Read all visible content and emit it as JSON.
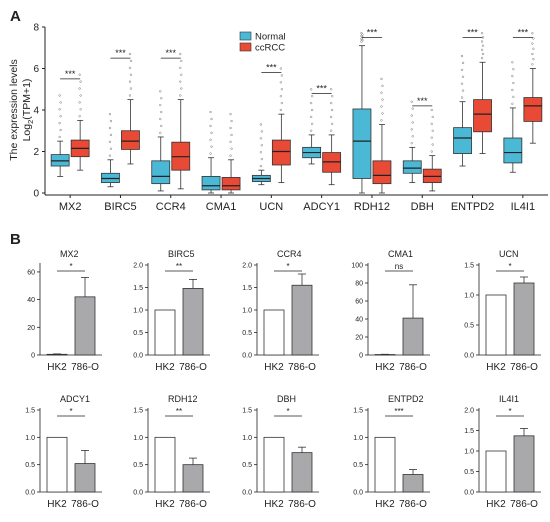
{
  "panel_a_label": "A",
  "panel_b_label": "B",
  "chart_data": [
    {
      "type": "boxplot",
      "ylabel_line1": "The expression levels",
      "ylabel_line2": "Log",
      "ylabel_sub": "2",
      "ylabel_tail": "(TPM+1)",
      "ylim": [
        0,
        8
      ],
      "yticks": [
        "0",
        "2",
        "4",
        "6",
        "8"
      ],
      "legend": [
        {
          "name": "Normal",
          "color": "#4bb9d6"
        },
        {
          "name": "ccRCC",
          "color": "#e84a35"
        }
      ],
      "categories": [
        "MX2",
        "BIRC5",
        "CCR4",
        "CMA1",
        "UCN",
        "ADCY1",
        "RDH12",
        "DBH",
        "ENTPD2",
        "IL4I1"
      ],
      "significance": [
        "***",
        "***",
        "***",
        "",
        "***",
        "***",
        "***",
        "***",
        "***",
        "***"
      ],
      "series": [
        {
          "name": "Normal",
          "boxes": [
            [
              0.8,
              1.3,
              1.55,
              1.85,
              2.5
            ],
            [
              0.3,
              0.5,
              0.7,
              0.95,
              1.6
            ],
            [
              0.1,
              0.45,
              0.8,
              1.55,
              2.7
            ],
            [
              0.0,
              0.15,
              0.35,
              0.8,
              1.7
            ],
            [
              0.4,
              0.55,
              0.7,
              0.85,
              1.1
            ],
            [
              1.4,
              1.7,
              1.95,
              2.2,
              2.8
            ],
            [
              0.0,
              0.7,
              2.5,
              4.05,
              7.1
            ],
            [
              0.5,
              0.95,
              1.2,
              1.55,
              2.2
            ],
            [
              1.3,
              1.9,
              2.65,
              3.15,
              4.4
            ],
            [
              1.0,
              1.45,
              1.95,
              2.65,
              4.1
            ]
          ]
        },
        {
          "name": "ccRCC",
          "boxes": [
            [
              1.1,
              1.75,
              2.15,
              2.55,
              3.5
            ],
            [
              1.4,
              2.1,
              2.5,
              3.0,
              4.5
            ],
            [
              0.2,
              1.1,
              1.75,
              2.45,
              4.5
            ],
            [
              0.0,
              0.15,
              0.35,
              0.75,
              1.6
            ],
            [
              0.5,
              1.35,
              2.0,
              2.55,
              3.8
            ],
            [
              0.4,
              1.0,
              1.5,
              1.95,
              2.8
            ],
            [
              0.0,
              0.45,
              0.85,
              1.55,
              3.3
            ],
            [
              0.1,
              0.5,
              0.8,
              1.15,
              1.8
            ],
            [
              1.9,
              2.95,
              3.8,
              4.5,
              6.3
            ],
            [
              2.4,
              3.45,
              4.2,
              4.6,
              6.0
            ]
          ]
        }
      ]
    },
    {
      "type": "bar",
      "title": "MX2",
      "categories": [
        "HK2",
        "786-O"
      ],
      "values": [
        0.5,
        42
      ],
      "errors": [
        0.3,
        14
      ],
      "yticks": [
        "0",
        "20",
        "40",
        "60"
      ],
      "ylim": [
        0,
        65
      ],
      "sig": "*"
    },
    {
      "type": "bar",
      "title": "BIRC5",
      "categories": [
        "HK2",
        "786-O"
      ],
      "values": [
        1.0,
        1.48
      ],
      "errors": [
        0,
        0.2
      ],
      "yticks": [
        "0.0",
        "0.5",
        "1.0",
        "1.5",
        "2.0"
      ],
      "ylim": [
        0,
        2.0
      ],
      "sig": "**"
    },
    {
      "type": "bar",
      "title": "CCR4",
      "categories": [
        "HK2",
        "786-O"
      ],
      "values": [
        1.0,
        1.55
      ],
      "errors": [
        0,
        0.25
      ],
      "yticks": [
        "0.0",
        "0.5",
        "1.0",
        "1.5",
        "2.0"
      ],
      "ylim": [
        0,
        2.0
      ],
      "sig": "*"
    },
    {
      "type": "bar",
      "title": "CMA1",
      "categories": [
        "HK2",
        "786-O"
      ],
      "values": [
        0.5,
        41
      ],
      "errors": [
        0.3,
        37
      ],
      "yticks": [
        "0",
        "20",
        "40",
        "60",
        "80",
        "100"
      ],
      "ylim": [
        0,
        100
      ],
      "sig": "ns"
    },
    {
      "type": "bar",
      "title": "UCN",
      "categories": [
        "HK2",
        "786-O"
      ],
      "values": [
        1.0,
        1.2
      ],
      "errors": [
        0,
        0.1
      ],
      "yticks": [
        "0.0",
        "0.5",
        "1.0",
        "1.5"
      ],
      "ylim": [
        0,
        1.5
      ],
      "sig": "*"
    },
    {
      "type": "bar",
      "title": "ADCY1",
      "categories": [
        "HK2",
        "786-O"
      ],
      "values": [
        1.0,
        0.52
      ],
      "errors": [
        0,
        0.24
      ],
      "yticks": [
        "0.0",
        "0.5",
        "1.0",
        "1.5"
      ],
      "ylim": [
        0,
        1.5
      ],
      "sig": "*"
    },
    {
      "type": "bar",
      "title": "RDH12",
      "categories": [
        "HK2",
        "786-O"
      ],
      "values": [
        1.0,
        0.5
      ],
      "errors": [
        0,
        0.12
      ],
      "yticks": [
        "0.0",
        "0.5",
        "1.0",
        "1.5"
      ],
      "ylim": [
        0,
        1.5
      ],
      "sig": "**"
    },
    {
      "type": "bar",
      "title": "DBH",
      "categories": [
        "HK2",
        "786-O"
      ],
      "values": [
        1.0,
        0.72
      ],
      "errors": [
        0,
        0.1
      ],
      "yticks": [
        "0.0",
        "0.5",
        "1.0",
        "1.5"
      ],
      "ylim": [
        0,
        1.5
      ],
      "sig": "*"
    },
    {
      "type": "bar",
      "title": "ENTPD2",
      "categories": [
        "HK2",
        "786-O"
      ],
      "values": [
        1.0,
        0.32
      ],
      "errors": [
        0,
        0.09
      ],
      "yticks": [
        "0.0",
        "0.5",
        "1.0",
        "1.5"
      ],
      "ylim": [
        0,
        1.5
      ],
      "sig": "***"
    },
    {
      "type": "bar",
      "title": "IL4I1",
      "categories": [
        "HK2",
        "786-O"
      ],
      "values": [
        1.0,
        1.37
      ],
      "errors": [
        0,
        0.18
      ],
      "yticks": [
        "0.0",
        "0.5",
        "1.0",
        "1.5",
        "2.0"
      ],
      "ylim": [
        0,
        2.0
      ],
      "sig": "*"
    }
  ]
}
